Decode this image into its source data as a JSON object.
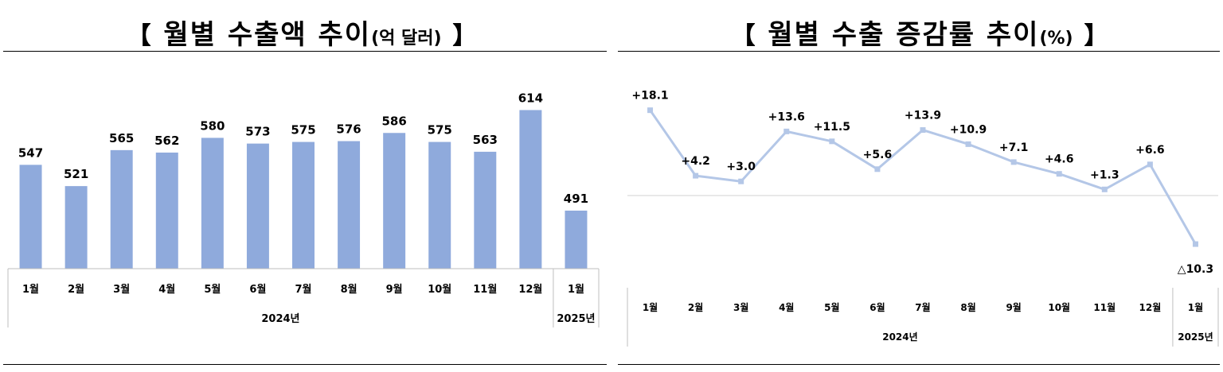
{
  "left": {
    "title": {
      "bracket_open": "【",
      "main": "월별 수출액 추이",
      "unit": "(억 달러)",
      "bracket_close": "】"
    }
  },
  "right": {
    "title": {
      "bracket_open": "【",
      "main": "월별 수출 증감률 추이",
      "unit": "(%)",
      "bracket_close": "】"
    }
  },
  "chart_data": [
    {
      "type": "bar",
      "title": "월별 수출액 추이(억 달러)",
      "categories": [
        "1월",
        "2월",
        "3월",
        "4월",
        "5월",
        "6월",
        "7월",
        "8월",
        "9월",
        "10월",
        "11월",
        "12월",
        "1월"
      ],
      "groups": [
        {
          "label": "2024년",
          "span": 12
        },
        {
          "label": "2025년",
          "span": 1
        }
      ],
      "values": [
        547,
        521,
        565,
        562,
        580,
        573,
        575,
        576,
        586,
        575,
        563,
        614,
        491
      ],
      "data_labels": [
        "547",
        "521",
        "565",
        "562",
        "580",
        "573",
        "575",
        "576",
        "586",
        "575",
        "563",
        "614",
        "491"
      ],
      "bar_color": "#8faadc",
      "ylim": [
        420,
        630
      ],
      "grid": false,
      "xlabel": "",
      "ylabel": ""
    },
    {
      "type": "line",
      "title": "월별 수출 증감률 추이(%)",
      "categories": [
        "1월",
        "2월",
        "3월",
        "4월",
        "5월",
        "6월",
        "7월",
        "8월",
        "9월",
        "10월",
        "11월",
        "12월",
        "1월"
      ],
      "groups": [
        {
          "label": "2024년",
          "span": 12
        },
        {
          "label": "2025년",
          "span": 1
        }
      ],
      "values": [
        18.1,
        4.2,
        3.0,
        13.6,
        11.5,
        5.6,
        13.9,
        10.9,
        7.1,
        4.6,
        1.3,
        6.6,
        -10.3
      ],
      "data_labels": [
        "+18.1",
        "+4.2",
        "+3.0",
        "+13.6",
        "+11.5",
        "+5.6",
        "+13.9",
        "+10.9",
        "+7.1",
        "+4.6",
        "+1.3",
        "+6.6",
        "△10.3"
      ],
      "line_color": "#b4c7e7",
      "ylim": [
        -12,
        20
      ],
      "zero_line": true,
      "grid": false,
      "xlabel": "",
      "ylabel": ""
    }
  ]
}
